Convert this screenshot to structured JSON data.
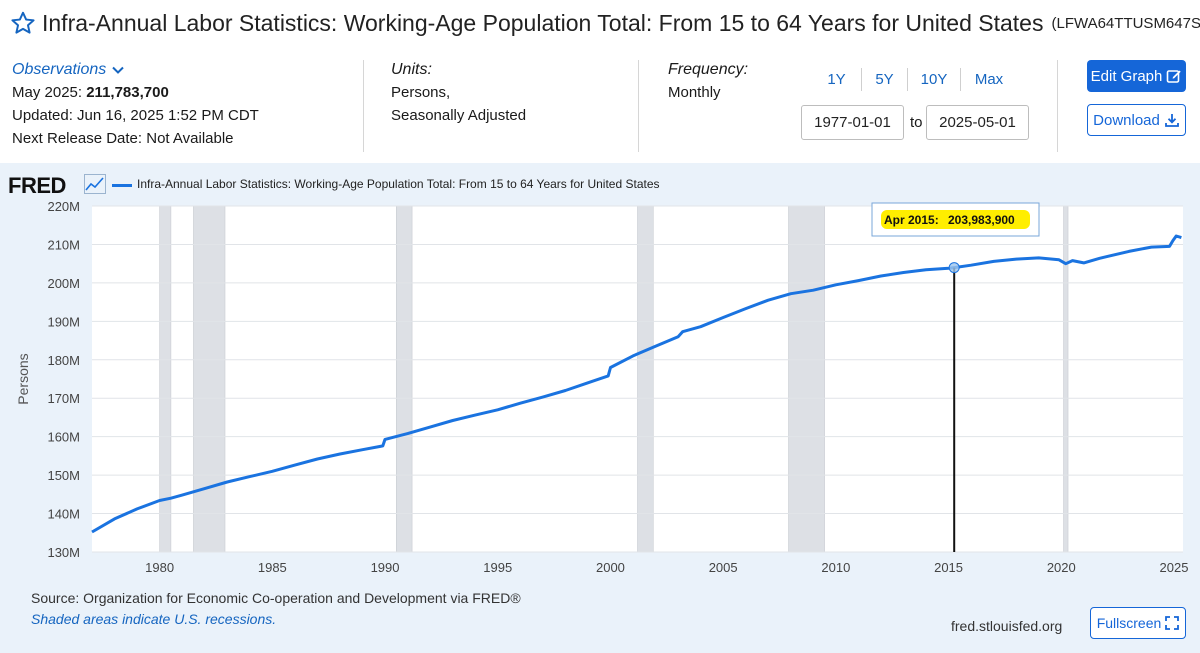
{
  "header": {
    "title": "Infra-Annual Labor Statistics: Working-Age Population Total: From 15 to 64 Years for United States",
    "series_id": "(LFWA64TTUSM647S)"
  },
  "observations": {
    "label": "Observations",
    "latest_period": "May 2025:",
    "latest_value": "211,783,700",
    "updated": "Updated: Jun 16, 2025 1:52 PM CDT",
    "next_release": "Next Release Date: Not Available"
  },
  "units": {
    "label": "Units:",
    "line1": "Persons,",
    "line2": "Seasonally Adjusted"
  },
  "frequency": {
    "label": "Frequency:",
    "value": "Monthly"
  },
  "range_buttons": [
    "1Y",
    "5Y",
    "10Y",
    "Max"
  ],
  "date_range": {
    "start": "1977-01-01",
    "to_label": "to",
    "end": "2025-05-01"
  },
  "buttons": {
    "edit_graph": "Edit Graph",
    "download": "Download",
    "fullscreen": "Fullscreen"
  },
  "brand": {
    "logo": "FRED",
    "site": "fred.stlouisfed.org",
    "line_color": "#1a73e0",
    "primary_color": "#1566d8",
    "tooltip_color": "#ffee00"
  },
  "footer": {
    "source": "Source: Organization for Economic Co-operation and Development via FRED®",
    "shaded_note": "Shaded areas indicate U.S. recessions."
  },
  "chart_data": {
    "type": "line",
    "title": "Infra-Annual Labor Statistics: Working-Age Population Total: From 15 to 64 Years for United States",
    "ylabel": "Persons",
    "xlabel": "",
    "xlim": [
      1977.0,
      2025.4
    ],
    "ylim": [
      130,
      220
    ],
    "y_unit": "M",
    "grid": true,
    "y_ticks": [
      130,
      140,
      150,
      160,
      170,
      180,
      190,
      200,
      210,
      220
    ],
    "y_tick_labels": [
      "130M",
      "140M",
      "150M",
      "160M",
      "170M",
      "180M",
      "190M",
      "200M",
      "210M",
      "220M"
    ],
    "x_ticks": [
      1980,
      1985,
      1990,
      1995,
      2000,
      2005,
      2010,
      2015,
      2020,
      2025
    ],
    "x_tick_labels": [
      "1980",
      "1985",
      "1990",
      "1995",
      "2000",
      "2005",
      "2010",
      "2015",
      "2020",
      "2025"
    ],
    "recessions": [
      [
        1980.0,
        1980.5
      ],
      [
        1981.5,
        1982.9
      ],
      [
        1990.5,
        1991.2
      ],
      [
        2001.2,
        2001.9
      ],
      [
        2007.9,
        2009.5
      ],
      [
        2020.1,
        2020.3
      ]
    ],
    "series": [
      {
        "name": "Infra-Annual Labor Statistics: Working-Age Population Total: From 15 to 64 Years for United States",
        "x": [
          1977.0,
          1978.0,
          1979.0,
          1980.0,
          1980.5,
          1981.0,
          1982.0,
          1983.0,
          1984.0,
          1985.0,
          1986.0,
          1987.0,
          1988.0,
          1989.0,
          1989.9,
          1990.0,
          1991.0,
          1992.0,
          1993.0,
          1994.0,
          1995.0,
          1996.0,
          1997.0,
          1998.0,
          1999.0,
          1999.9,
          2000.0,
          2001.0,
          2002.0,
          2003.0,
          2003.2,
          2004.0,
          2005.0,
          2006.0,
          2007.0,
          2008.0,
          2009.0,
          2010.0,
          2011.0,
          2012.0,
          2013.0,
          2014.0,
          2015.0,
          2015.25,
          2016.0,
          2017.0,
          2018.0,
          2019.0,
          2019.9,
          2020.2,
          2020.5,
          2021.0,
          2021.7,
          2022.0,
          2023.0,
          2024.0,
          2024.8,
          2024.95,
          2025.1,
          2025.33
        ],
        "y": [
          135.2,
          138.6,
          141.2,
          143.4,
          144.0,
          144.8,
          146.5,
          148.2,
          149.6,
          151.0,
          152.6,
          154.2,
          155.5,
          156.6,
          157.6,
          159.3,
          160.8,
          162.5,
          164.2,
          165.6,
          167.0,
          168.7,
          170.3,
          172.0,
          174.0,
          175.8,
          178.0,
          181.0,
          183.5,
          186.0,
          187.3,
          188.6,
          191.0,
          193.3,
          195.5,
          197.2,
          198.1,
          199.5,
          200.6,
          201.8,
          202.7,
          203.4,
          203.8,
          203.984,
          204.6,
          205.6,
          206.2,
          206.5,
          206.0,
          205.0,
          205.8,
          205.2,
          206.4,
          206.8,
          208.2,
          209.3,
          209.5,
          211.0,
          212.2,
          211.78
        ]
      }
    ],
    "annotation": {
      "label": "Apr 2015:",
      "value": "203,983,900",
      "x": 2015.25,
      "y": 203.984
    }
  }
}
